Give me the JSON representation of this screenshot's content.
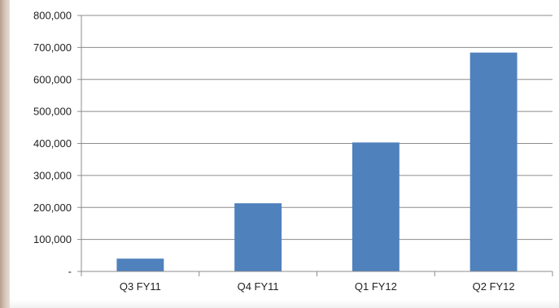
{
  "chart_data": {
    "type": "bar",
    "title": "",
    "xlabel": "",
    "ylabel": "",
    "categories": [
      "Q3 FY11",
      "Q4 FY11",
      "Q1 FY12",
      "Q2 FY12"
    ],
    "series": [
      {
        "values": [
          40000,
          213000,
          403000,
          684000
        ]
      }
    ],
    "ylim": [
      0,
      800000
    ],
    "yticks": [
      0,
      100000,
      200000,
      300000,
      400000,
      500000,
      600000,
      700000,
      800000
    ],
    "ytick_labels": [
      "-",
      "100,000",
      "200,000",
      "300,000",
      "400,000",
      "500,000",
      "600,000",
      "700,000",
      "800,000"
    ],
    "grid": true,
    "legend": "none",
    "colors": {
      "bar": "#4f81bd",
      "grid": "#8c8c8c",
      "axis": "#8c8c8c"
    }
  }
}
